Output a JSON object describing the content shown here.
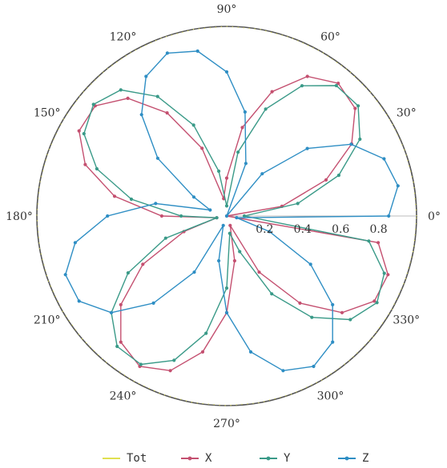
{
  "chart_data": {
    "type": "polar-line",
    "title": "",
    "rlim": [
      0,
      1
    ],
    "radial_ticks": [
      "0.2",
      "0.4",
      "0.6",
      "0.8"
    ],
    "radial_tick_values": [
      0.2,
      0.4,
      0.6,
      0.8
    ],
    "angle_ticks": [
      "0°",
      "30°",
      "60°",
      "90°",
      "120°",
      "150°",
      "180°",
      "210°",
      "240°",
      "270°",
      "300°",
      "330°"
    ],
    "angle_tick_values": [
      0,
      30,
      60,
      90,
      120,
      150,
      180,
      210,
      240,
      270,
      300,
      330
    ],
    "grid": false,
    "legend": "bottom",
    "theta_deg": [
      0,
      10,
      20,
      30,
      40,
      50,
      60,
      70,
      80,
      90,
      100,
      110,
      120,
      130,
      140,
      150,
      160,
      170,
      180,
      190,
      200,
      210,
      220,
      230,
      240,
      250,
      260,
      270,
      280,
      290,
      300,
      310,
      320,
      330,
      340,
      350
    ],
    "series": [
      {
        "name": "Tot",
        "color": "#e0e050",
        "r": [
          1,
          1,
          1,
          1,
          1,
          1,
          1,
          1,
          1,
          1,
          1,
          1,
          1,
          1,
          1,
          1,
          1,
          1,
          1,
          1,
          1,
          1,
          1,
          1,
          1,
          1,
          1,
          1,
          1,
          1,
          1,
          1,
          1,
          1,
          1,
          1
        ]
      },
      {
        "name": "X",
        "color": "#c45070",
        "r": [
          0.0,
          0.295,
          0.557,
          0.76,
          0.883,
          0.914,
          0.85,
          0.698,
          0.474,
          0.2,
          0.093,
          0.38,
          0.628,
          0.81,
          0.904,
          0.898,
          0.793,
          0.6,
          0.342,
          0.053,
          0.24,
          0.51,
          0.728,
          0.868,
          0.916,
          0.868,
          0.728,
          0.51,
          0.24,
          0.053,
          0.342,
          0.6,
          0.793,
          0.898,
          0.904,
          0.81
        ]
      },
      {
        "name": "Y",
        "color": "#3a9a88",
        "r": [
          0.093,
          0.38,
          0.628,
          0.81,
          0.904,
          0.898,
          0.793,
          0.6,
          0.342,
          0.053,
          0.24,
          0.51,
          0.728,
          0.868,
          0.916,
          0.868,
          0.728,
          0.51,
          0.24,
          0.053,
          0.342,
          0.6,
          0.793,
          0.898,
          0.904,
          0.81,
          0.628,
          0.38,
          0.093,
          0.2,
          0.474,
          0.698,
          0.85,
          0.914,
          0.883,
          0.76
        ]
      },
      {
        "name": "Z",
        "color": "#2e8ec4",
        "r": [
          0.853,
          0.916,
          0.882,
          0.757,
          0.554,
          0.291,
          0.0,
          0.295,
          0.557,
          0.76,
          0.883,
          0.914,
          0.85,
          0.698,
          0.474,
          0.2,
          0.093,
          0.38,
          0.628,
          0.81,
          0.904,
          0.898,
          0.793,
          0.6,
          0.342,
          0.053,
          0.24,
          0.51,
          0.728,
          0.868,
          0.916,
          0.868,
          0.728,
          0.51,
          0.24,
          0.053
        ]
      }
    ]
  }
}
